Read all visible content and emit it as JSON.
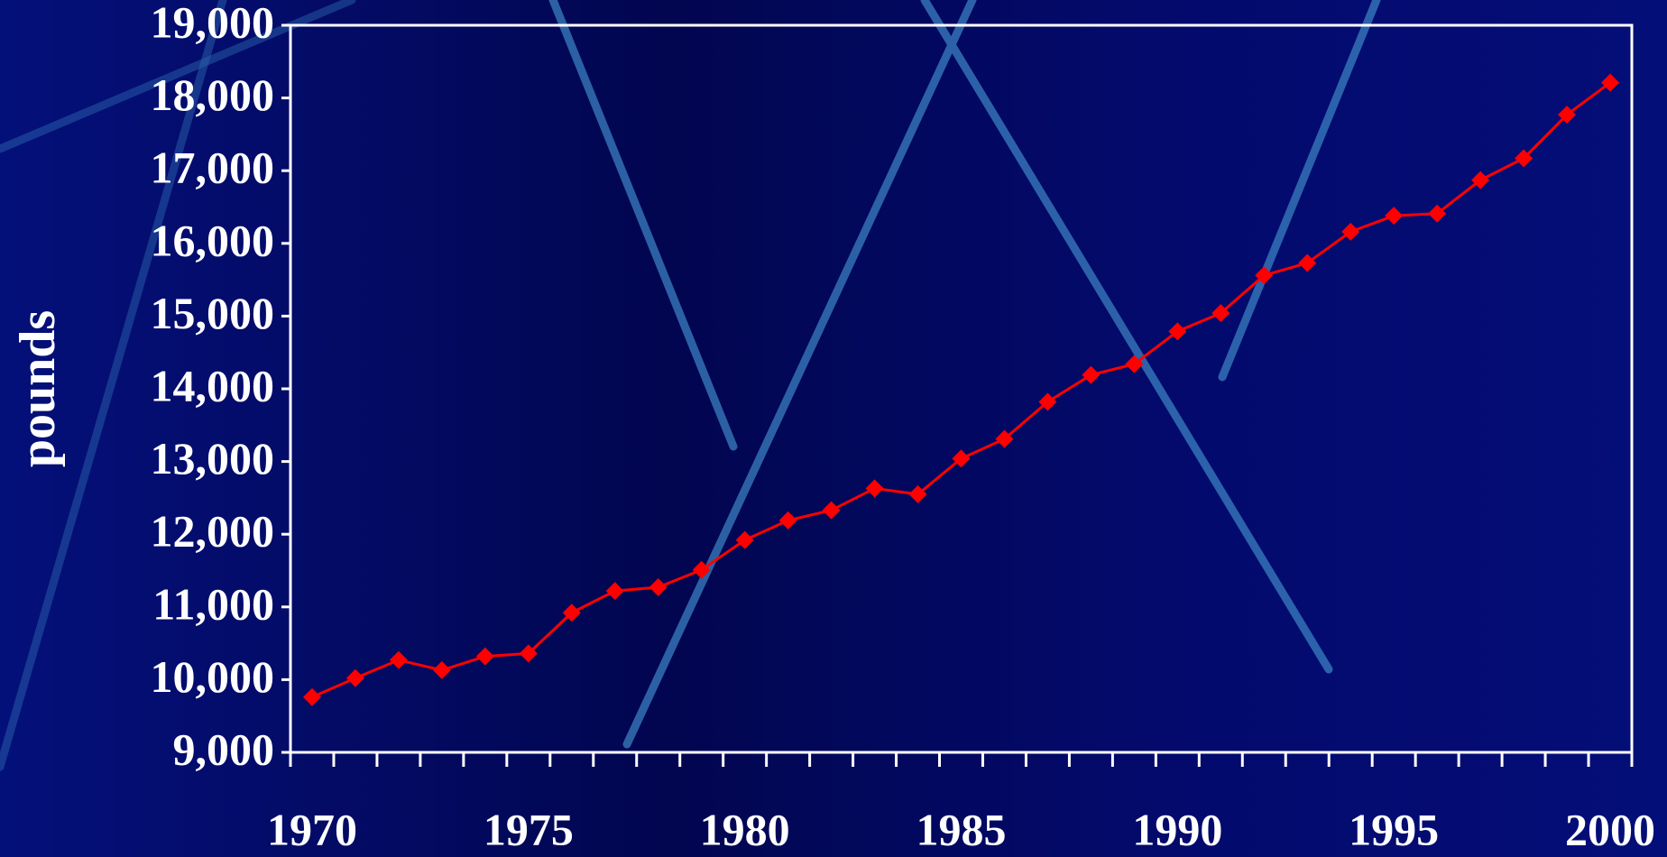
{
  "chart_data": {
    "type": "line",
    "y_label": "pounds",
    "categories": [
      "1970",
      null,
      null,
      null,
      null,
      "1975",
      null,
      null,
      null,
      null,
      "1980",
      null,
      null,
      null,
      null,
      "1985",
      null,
      null,
      null,
      null,
      "1990",
      null,
      null,
      null,
      null,
      "1995",
      null,
      null,
      null,
      null,
      "2000"
    ],
    "series": [
      {
        "name": "pounds",
        "color": "#ff0000",
        "values": [
          9760,
          10020,
          10270,
          10130,
          10320,
          10360,
          10920,
          11220,
          11270,
          11510,
          11920,
          12190,
          12330,
          12630,
          12550,
          13040,
          13310,
          13820,
          14190,
          14340,
          14790,
          15040,
          15560,
          15730,
          16160,
          16380,
          16410,
          16870,
          17170,
          17770,
          18210
        ]
      }
    ],
    "ylim": [
      9000,
      19000
    ],
    "yticks": [
      {
        "value": 9000,
        "label": "9,000"
      },
      {
        "value": 10000,
        "label": "10,000"
      },
      {
        "value": 11000,
        "label": "11,000"
      },
      {
        "value": 12000,
        "label": "12,000"
      },
      {
        "value": 13000,
        "label": "13,000"
      },
      {
        "value": 14000,
        "label": "14,000"
      },
      {
        "value": 15000,
        "label": "15,000"
      },
      {
        "value": 16000,
        "label": "16,000"
      },
      {
        "value": 17000,
        "label": "17,000"
      },
      {
        "value": 18000,
        "label": "18,000"
      },
      {
        "value": 19000,
        "label": "19,000"
      }
    ],
    "grid": false
  }
}
